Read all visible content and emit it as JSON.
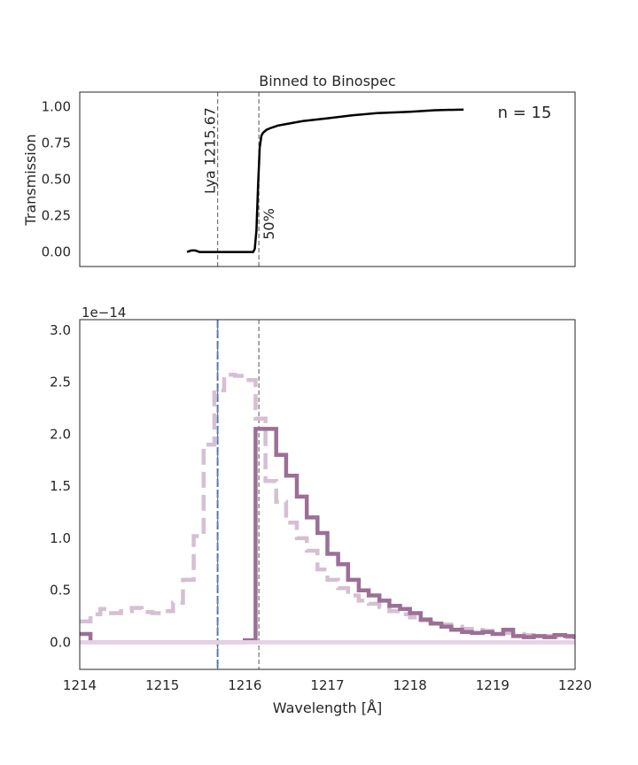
{
  "chart_data": [
    {
      "type": "line",
      "title": "Binned to Binospec",
      "xlabel": "",
      "ylabel": "Transmission",
      "xlim": [
        1214,
        1220
      ],
      "ylim": [
        -0.1,
        1.1
      ],
      "yticks": [
        "0.00",
        "0.25",
        "0.50",
        "0.75",
        "1.00"
      ],
      "grid": false,
      "legend": "none",
      "annotations": {
        "lya_label": "Lya 1215.67",
        "pct_label": "50%",
        "n_label": "n = 15"
      },
      "vlines": [
        1215.67,
        1216.17
      ],
      "series": [
        {
          "color": "#000000",
          "x": [
            1215.3,
            1215.35,
            1215.4,
            1215.45,
            1215.5,
            1215.6,
            1215.8,
            1216.0,
            1216.1,
            1216.12,
            1216.14,
            1216.16,
            1216.18,
            1216.2,
            1216.22,
            1216.26,
            1216.3,
            1216.4,
            1216.5,
            1216.7,
            1217.0,
            1217.3,
            1217.6,
            1218.0,
            1218.3,
            1218.65
          ],
          "y": [
            0.0,
            0.01,
            0.01,
            0.0,
            0.0,
            0.0,
            0.0,
            0.0,
            0.0,
            0.02,
            0.15,
            0.45,
            0.72,
            0.8,
            0.82,
            0.84,
            0.85,
            0.87,
            0.88,
            0.9,
            0.92,
            0.94,
            0.955,
            0.965,
            0.975,
            0.98
          ]
        }
      ]
    },
    {
      "type": "line",
      "title": "",
      "xlabel": "Wavelength [Å]",
      "ylabel": "",
      "offset_label": "1e−14",
      "xlim": [
        1214,
        1220
      ],
      "ylim": [
        -0.26,
        3.1
      ],
      "xticks": [
        "1214",
        "1215",
        "1216",
        "1217",
        "1218",
        "1219",
        "1220"
      ],
      "yticks": [
        "0.0",
        "0.5",
        "1.0",
        "1.5",
        "2.0",
        "2.5",
        "3.0"
      ],
      "grid": false,
      "legend": "none",
      "vlines_dashed": [
        1215.67,
        1216.17
      ],
      "vline_blue": 1215.67,
      "series": [
        {
          "style": "dashed-step",
          "color": "#d5bfd3",
          "x": [
            1214.0,
            1214.13,
            1214.25,
            1214.38,
            1214.5,
            1214.63,
            1214.75,
            1214.88,
            1215.0,
            1215.13,
            1215.25,
            1215.38,
            1215.5,
            1215.63,
            1215.75,
            1215.88,
            1216.0,
            1216.13,
            1216.25,
            1216.38,
            1216.5,
            1216.63,
            1216.75,
            1216.88,
            1217.0,
            1217.13,
            1217.25,
            1217.38,
            1217.5,
            1217.63,
            1217.75,
            1217.88,
            1218.0,
            1218.13,
            1218.25,
            1218.38,
            1218.5,
            1218.63,
            1218.75,
            1218.88,
            1219.0,
            1219.13,
            1219.25,
            1219.38,
            1219.5,
            1219.63,
            1219.75,
            1219.88,
            1220.0
          ],
          "y": [
            0.2,
            0.27,
            0.32,
            0.28,
            0.3,
            0.33,
            0.29,
            0.28,
            0.3,
            0.38,
            0.6,
            1.02,
            1.9,
            2.42,
            2.57,
            2.56,
            2.52,
            2.15,
            1.55,
            1.35,
            1.15,
            1.0,
            0.88,
            0.7,
            0.6,
            0.52,
            0.45,
            0.4,
            0.37,
            0.34,
            0.3,
            0.27,
            0.24,
            0.21,
            0.19,
            0.17,
            0.15,
            0.13,
            0.12,
            0.11,
            0.1,
            0.09,
            0.08,
            0.07,
            0.06,
            0.06,
            0.05,
            0.05,
            0.05
          ]
        },
        {
          "style": "step",
          "color": "#9b6f96",
          "x": [
            1214.0,
            1214.13,
            1214.25,
            1214.38,
            1214.5,
            1214.63,
            1214.75,
            1214.88,
            1215.0,
            1215.13,
            1215.25,
            1215.38,
            1215.5,
            1215.63,
            1215.75,
            1215.88,
            1216.0,
            1216.13,
            1216.25,
            1216.38,
            1216.5,
            1216.63,
            1216.75,
            1216.88,
            1217.0,
            1217.13,
            1217.25,
            1217.38,
            1217.5,
            1217.63,
            1217.75,
            1217.88,
            1218.0,
            1218.13,
            1218.25,
            1218.38,
            1218.5,
            1218.63,
            1218.75,
            1218.88,
            1219.0,
            1219.13,
            1219.25,
            1219.38,
            1219.5,
            1219.63,
            1219.75,
            1219.88,
            1220.0
          ],
          "y": [
            0.08,
            0.0,
            0.0,
            0.0,
            0.0,
            0.0,
            0.0,
            0.0,
            0.0,
            0.0,
            0.0,
            0.0,
            0.0,
            0.0,
            0.0,
            0.0,
            0.02,
            2.05,
            2.05,
            1.8,
            1.6,
            1.4,
            1.2,
            1.05,
            0.85,
            0.75,
            0.6,
            0.5,
            0.45,
            0.4,
            0.35,
            0.32,
            0.28,
            0.22,
            0.18,
            0.15,
            0.12,
            0.1,
            0.09,
            0.1,
            0.08,
            0.12,
            0.06,
            0.05,
            0.06,
            0.05,
            0.07,
            0.06,
            0.03
          ]
        },
        {
          "style": "band",
          "color": "#e4d2e2",
          "x": [
            1214.0,
            1220.0
          ],
          "y": [
            0.0,
            0.0
          ]
        }
      ]
    }
  ]
}
